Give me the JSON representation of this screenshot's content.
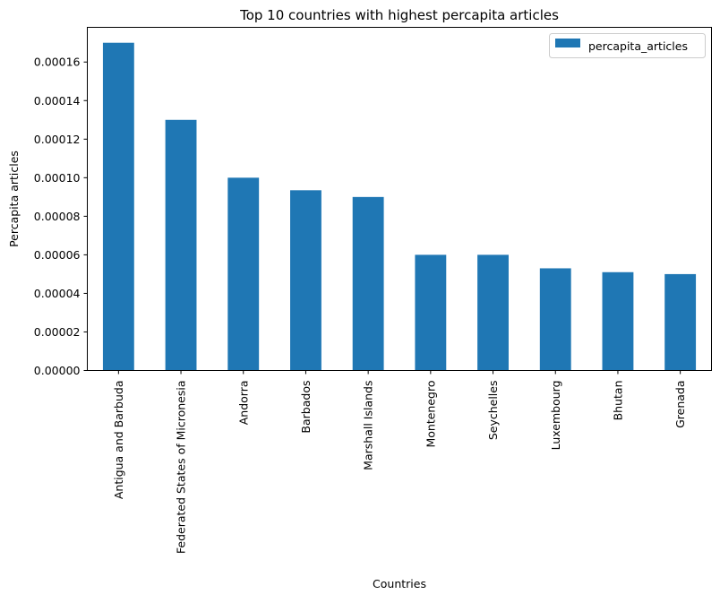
{
  "chart_data": {
    "type": "bar",
    "title": "Top 10 countries with highest percapita articles",
    "xlabel": "Countries",
    "ylabel": "Percapita articles",
    "categories": [
      "Antigua and Barbuda",
      "Federated States of Micronesia",
      "Andorra",
      "Barbados",
      "Marshall Islands",
      "Montenegro",
      "Seychelles",
      "Luxembourg",
      "Bhutan",
      "Grenada"
    ],
    "series": [
      {
        "name": "percapita_articles",
        "color": "#1f77b4",
        "values": [
          0.00017,
          0.00013,
          0.0001,
          9.35e-05,
          9e-05,
          6e-05,
          6e-05,
          5.3e-05,
          5.1e-05,
          5e-05
        ]
      }
    ],
    "yticks": [
      "0.00000",
      "0.00002",
      "0.00004",
      "0.00006",
      "0.00008",
      "0.00010",
      "0.00012",
      "0.00014",
      "0.00016"
    ],
    "ylim": [
      0,
      0.00017
    ],
    "grid": false,
    "legend_position": "top-right"
  }
}
